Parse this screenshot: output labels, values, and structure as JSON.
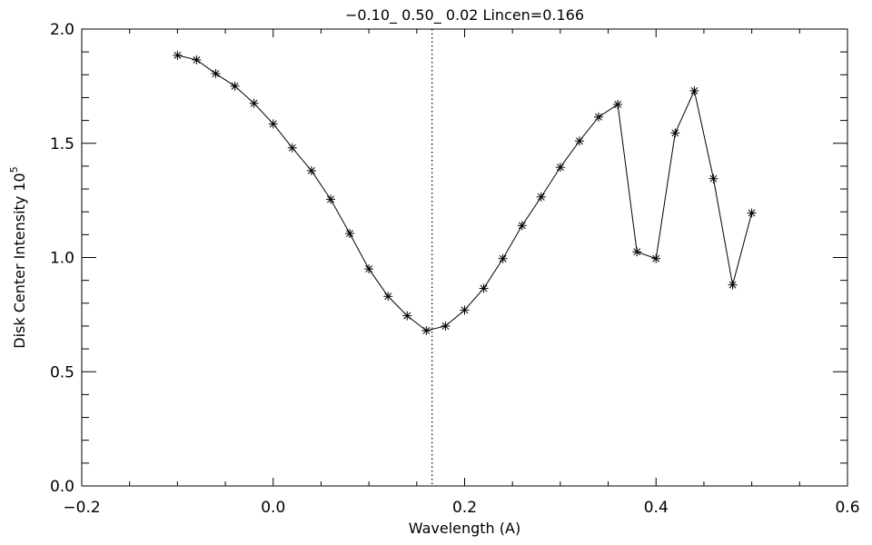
{
  "chart_data": {
    "type": "line",
    "title": "−0.10_  0.50_  0.02   Lincen=0.166",
    "xlabel": "Wavelength (A)",
    "ylabel_main": "Disk Center Intensity 10",
    "ylabel_exponent": "5",
    "xlim": [
      -0.2,
      0.6
    ],
    "ylim": [
      0.0,
      2.0
    ],
    "x_ticks": [
      -0.2,
      0.0,
      0.2,
      0.4,
      0.6
    ],
    "x_tick_labels": [
      "−0.2",
      "0.0",
      "0.2",
      "0.4",
      "0.6"
    ],
    "y_ticks": [
      0.0,
      0.5,
      1.0,
      1.5,
      2.0
    ],
    "y_tick_labels": [
      "0.0",
      "0.5",
      "1.0",
      "1.5",
      "2.0"
    ],
    "x_minor_step": 0.05,
    "y_minor_step": 0.1,
    "marker": "asterisk",
    "reference_line_x": 0.166,
    "x": [
      -0.1,
      -0.08,
      -0.06,
      -0.04,
      -0.02,
      0.0,
      0.02,
      0.04,
      0.06,
      0.08,
      0.1,
      0.12,
      0.14,
      0.16,
      0.18,
      0.2,
      0.22,
      0.24,
      0.26,
      0.28,
      0.3,
      0.32,
      0.34,
      0.36,
      0.38,
      0.4,
      0.42,
      0.44,
      0.46,
      0.48,
      0.5
    ],
    "y": [
      1.885,
      1.865,
      1.805,
      1.75,
      1.675,
      1.585,
      1.48,
      1.38,
      1.255,
      1.105,
      0.95,
      0.83,
      0.745,
      0.68,
      0.7,
      0.77,
      0.865,
      0.995,
      1.14,
      1.265,
      1.395,
      1.51,
      1.615,
      1.67,
      1.025,
      0.995,
      1.545,
      1.73,
      1.345,
      0.88,
      1.195
    ]
  }
}
